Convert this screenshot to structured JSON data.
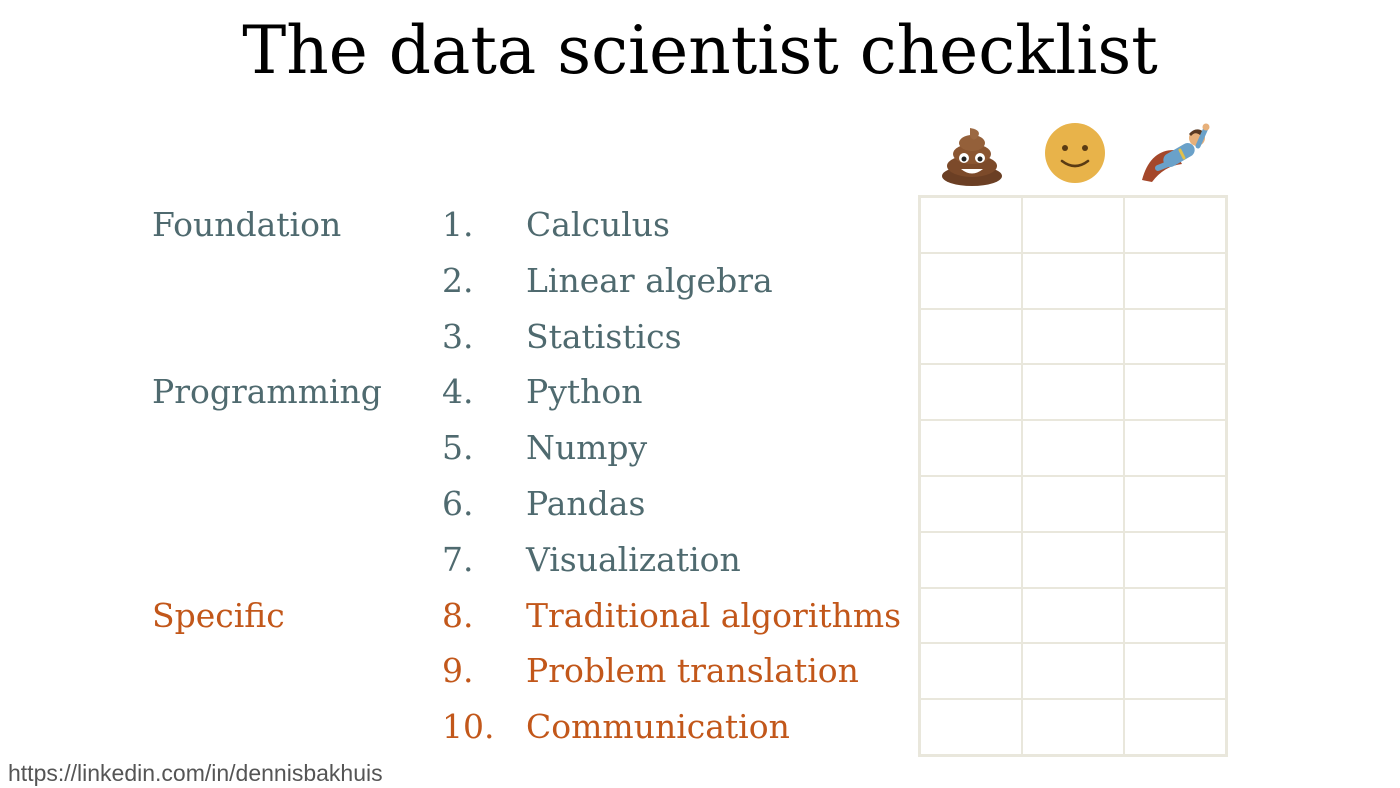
{
  "title": "The data scientist checklist",
  "columns": [
    {
      "icon": "poop-emoji-icon"
    },
    {
      "icon": "smiley-face-icon"
    },
    {
      "icon": "flying-superhero-icon"
    }
  ],
  "rows": [
    {
      "group": "Foundation",
      "number": "1.",
      "item": "Calculus",
      "tone": "default"
    },
    {
      "group": "",
      "number": "2.",
      "item": "Linear algebra",
      "tone": "default"
    },
    {
      "group": "",
      "number": "3.",
      "item": "Statistics",
      "tone": "default"
    },
    {
      "group": "Programming",
      "number": "4.",
      "item": "Python",
      "tone": "default"
    },
    {
      "group": "",
      "number": "5.",
      "item": "Numpy",
      "tone": "default"
    },
    {
      "group": "",
      "number": "6.",
      "item": "Pandas",
      "tone": "default"
    },
    {
      "group": "",
      "number": "7.",
      "item": "Visualization",
      "tone": "default"
    },
    {
      "group": "Specific",
      "number": "8.",
      "item": "Traditional algorithms",
      "tone": "accent"
    },
    {
      "group": "",
      "number": "9.",
      "item": "Problem translation",
      "tone": "accent"
    },
    {
      "group": "",
      "number": "10.",
      "item": "Communication",
      "tone": "accent"
    }
  ],
  "colors": {
    "default_text": "#4f6a6f",
    "accent_text": "#c2571a",
    "grid_lines": "#e9e7dc"
  },
  "footer": "https://linkedin.com/in/dennisbakhuis"
}
